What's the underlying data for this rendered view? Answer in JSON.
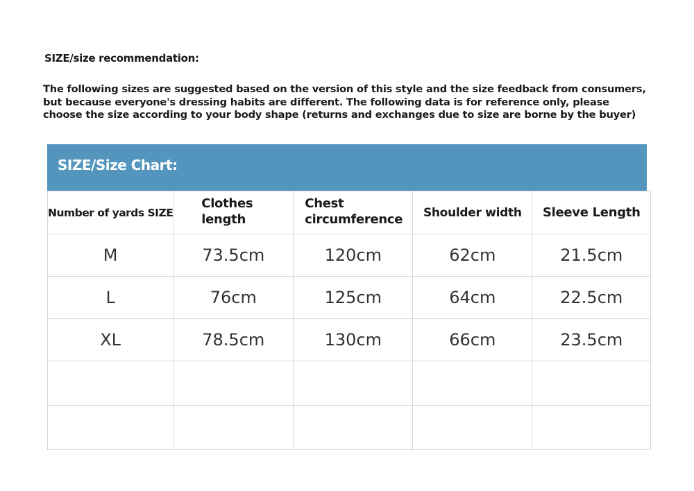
{
  "title": "SIZE/size recommendation:",
  "intro": [
    "The following sizes are suggested based on the version of this style and the size feedback from consumers,",
    "but because everyone's dressing habits are different. The following data is for reference only, please",
    "choose the size according to your body shape (returns and exchanges due to size are borne by the buyer)"
  ],
  "chart_title": "SIZE/Size Chart:",
  "header_color": "#5495be",
  "columns": [
    "Number of yards SIZE",
    "Clothes length",
    "Chest circumference",
    "Shoulder width",
    "Sleeve Length"
  ],
  "rows": [
    [
      "M",
      "73.5cm",
      "120cm",
      "62cm",
      "21.5cm"
    ],
    [
      "L",
      "76cm",
      "125cm",
      "64cm",
      "22.5cm"
    ],
    [
      "XL",
      "78.5cm",
      "130cm",
      "66cm",
      "23.5cm"
    ]
  ]
}
